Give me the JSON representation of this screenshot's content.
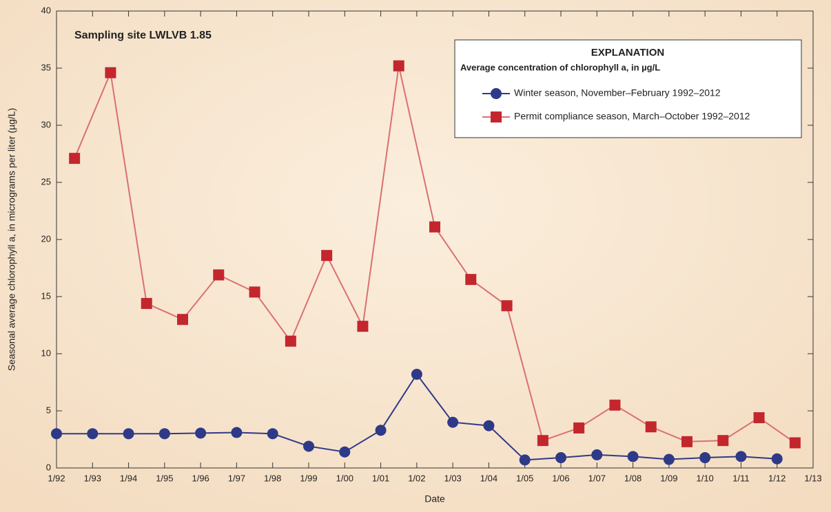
{
  "chart_data": {
    "type": "line",
    "title": "Sampling site LWLVB 1.85",
    "xlabel": "Date",
    "ylabel": "Seasonal average chlorophyll a, in micrograms per liter (µg/L)",
    "legend": {
      "title": "EXPLANATION",
      "subtitle": "Average concentration of chlorophyll a, in µg/L",
      "position": "upper right"
    },
    "xlim": [
      1992,
      2013
    ],
    "xticks": [
      {
        "value": 1992,
        "label": "1/92"
      },
      {
        "value": 1993,
        "label": "1/93"
      },
      {
        "value": 1994,
        "label": "1/94"
      },
      {
        "value": 1995,
        "label": "1/95"
      },
      {
        "value": 1996,
        "label": "1/96"
      },
      {
        "value": 1997,
        "label": "1/97"
      },
      {
        "value": 1998,
        "label": "1/98"
      },
      {
        "value": 1999,
        "label": "1/99"
      },
      {
        "value": 2000,
        "label": "1/00"
      },
      {
        "value": 2001,
        "label": "1/01"
      },
      {
        "value": 2002,
        "label": "1/02"
      },
      {
        "value": 2003,
        "label": "1/03"
      },
      {
        "value": 2004,
        "label": "1/04"
      },
      {
        "value": 2005,
        "label": "1/05"
      },
      {
        "value": 2006,
        "label": "1/06"
      },
      {
        "value": 2007,
        "label": "1/07"
      },
      {
        "value": 2008,
        "label": "1/08"
      },
      {
        "value": 2009,
        "label": "1/09"
      },
      {
        "value": 2010,
        "label": "1/10"
      },
      {
        "value": 2011,
        "label": "1/11"
      },
      {
        "value": 2012,
        "label": "1/12"
      },
      {
        "value": 2013,
        "label": "1/13"
      }
    ],
    "ylim": [
      0,
      40
    ],
    "yticks": [
      0,
      5,
      10,
      15,
      20,
      25,
      30,
      35,
      40
    ],
    "grid": false,
    "series": [
      {
        "name": "Winter season, November–February 1992–2012",
        "color": "#2e3a87",
        "line_color": "#2e3a87",
        "marker": "circle",
        "x": [
          1992,
          1993,
          1994,
          1995,
          1996,
          1997,
          1998,
          1999,
          2000,
          2001,
          2002,
          2003,
          2004,
          2005,
          2006,
          2007,
          2008,
          2009,
          2010,
          2011,
          2012
        ],
        "values": [
          3.0,
          3.0,
          3.0,
          3.0,
          3.05,
          3.1,
          3.0,
          1.9,
          1.4,
          3.3,
          8.2,
          4.0,
          3.7,
          0.7,
          0.9,
          1.15,
          1.0,
          0.75,
          0.9,
          1.0,
          0.8
        ]
      },
      {
        "name": "Permit compliance season, March–October 1992–2012",
        "color": "#c4262e",
        "line_color": "#d9706f",
        "marker": "square",
        "x": [
          1992.5,
          1993.5,
          1994.5,
          1995.5,
          1996.5,
          1997.5,
          1998.5,
          1999.5,
          2000.5,
          2001.5,
          2002.5,
          2003.5,
          2004.5,
          2005.5,
          2006.5,
          2007.5,
          2008.5,
          2009.5,
          2010.5,
          2011.5,
          2012.5
        ],
        "values": [
          27.1,
          34.6,
          14.4,
          13.0,
          16.9,
          15.4,
          11.1,
          18.6,
          12.4,
          35.2,
          21.1,
          16.5,
          14.2,
          2.4,
          3.5,
          5.5,
          3.6,
          2.3,
          2.4,
          4.4,
          2.2
        ]
      }
    ]
  }
}
